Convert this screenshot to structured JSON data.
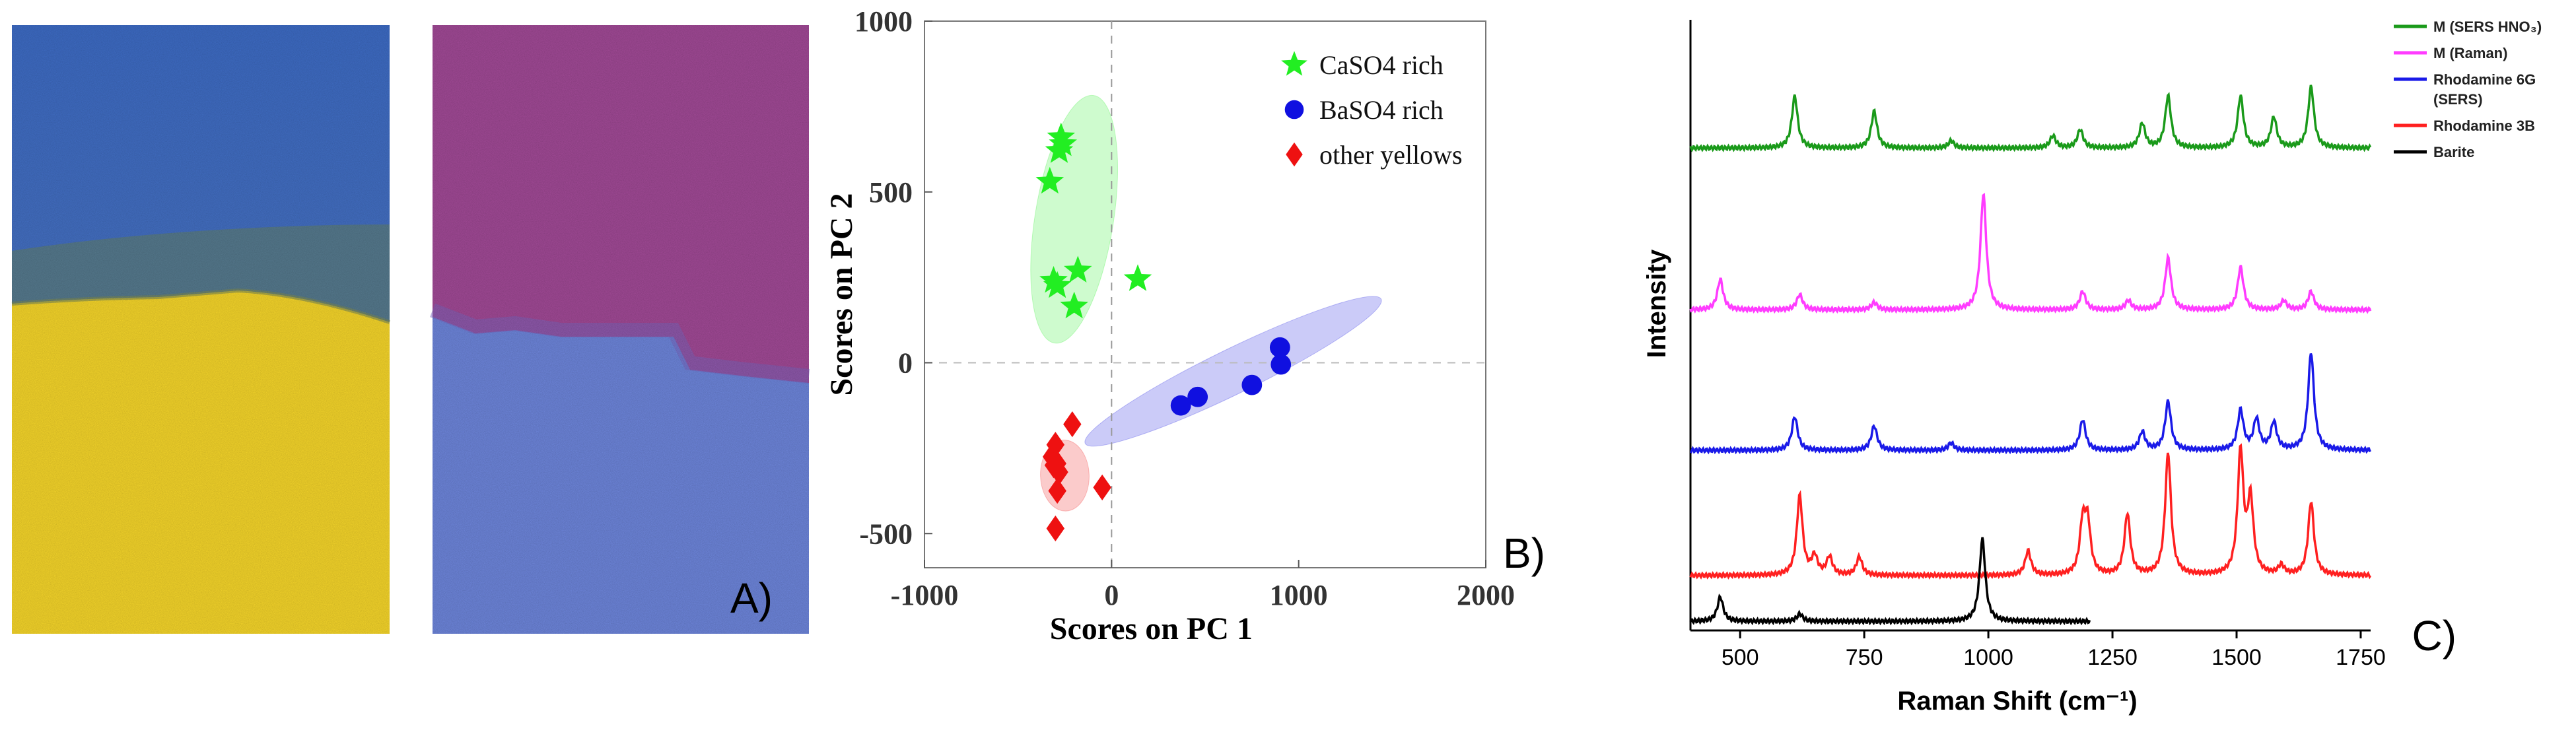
{
  "panels": {
    "a": {
      "label": "A)"
    },
    "b": {
      "label": "B)"
    },
    "c": {
      "label": "C)"
    }
  },
  "colors": {
    "blue_paint": "#3f6fc6",
    "yellow_paint": "#f4d32e",
    "magenta_paint": "#a0489a",
    "light_blue_paint": "#6e87df",
    "casO4": "#22ee22",
    "baso4": "#1010e0",
    "other": "#ee1111",
    "spec_green": "#1a9a1a",
    "spec_magenta": "#ff3cff",
    "spec_blue": "#1a1ae8",
    "spec_red": "#ff2020",
    "spec_black": "#000000"
  },
  "chart_data": [
    {
      "type": "scatter",
      "panel": "B)",
      "xlabel": "Scores on PC 1",
      "ylabel": "Scores on PC 2",
      "xlim": [
        -1000,
        2000
      ],
      "ylim": [
        -600,
        1000
      ],
      "xticks": [
        -1000,
        0,
        1000,
        2000
      ],
      "xtick_labels": [
        "-1000",
        "0",
        "1000",
        "2000"
      ],
      "yticks": [
        -500,
        0,
        500,
        1000
      ],
      "ytick_labels": [
        "-500",
        "0",
        "500",
        "1000"
      ],
      "grid": false,
      "legend_position": "top-right",
      "series": [
        {
          "name": "CaSO4 rich",
          "marker": "star",
          "color": "#22ee22",
          "points": [
            [
              -270,
              660
            ],
            [
              -260,
              640
            ],
            [
              -280,
              620
            ],
            [
              -330,
              530
            ],
            [
              -180,
              270
            ],
            [
              -310,
              240
            ],
            [
              -290,
              225
            ],
            [
              -200,
              165
            ],
            [
              140,
              245
            ]
          ],
          "ellipse": {
            "cx": -200,
            "cy": 420,
            "rx": 670,
            "ry": 210,
            "angle": 81
          }
        },
        {
          "name": "BaSO4 rich",
          "marker": "circle",
          "color": "#1010e0",
          "points": [
            [
              900,
              45
            ],
            [
              905,
              -5
            ],
            [
              750,
              -65
            ],
            [
              460,
              -100
            ],
            [
              370,
              -125
            ]
          ],
          "ellipse": {
            "cx": 650,
            "cy": -25,
            "rx": 880,
            "ry": 120,
            "angle": 26
          }
        },
        {
          "name": "other yellows",
          "marker": "diamond",
          "color": "#ee1111",
          "points": [
            [
              -210,
              -180
            ],
            [
              -300,
              -240
            ],
            [
              -320,
              -275
            ],
            [
              -290,
              -295
            ],
            [
              -310,
              -300
            ],
            [
              -280,
              -320
            ],
            [
              -290,
              -375
            ],
            [
              -50,
              -365
            ],
            [
              -300,
              -485
            ]
          ],
          "ellipse": {
            "cx": -250,
            "cy": -330,
            "rx": 190,
            "ry": 130,
            "angle": 92
          }
        }
      ]
    },
    {
      "type": "line",
      "panel": "C)",
      "xlabel": "Raman Shift (cm⁻¹)",
      "ylabel": "Intensity",
      "xlim": [
        400,
        1770
      ],
      "xticks": [
        500,
        750,
        1000,
        1250,
        1500,
        1750
      ],
      "xtick_labels": [
        "500",
        "750",
        "1000",
        "1250",
        "1500",
        "1750"
      ],
      "legend_position": "top-right",
      "legend": [
        {
          "lines": [
            "M (SERS HNO₃)"
          ],
          "color": "#1a9a1a"
        },
        {
          "lines": [
            "M (Raman)"
          ],
          "color": "#ff3cff"
        },
        {
          "lines": [
            "Rhodamine 6G",
            "(SERS)"
          ],
          "color": "#1a1ae8"
        },
        {
          "lines": [
            "Rhodamine 3B"
          ],
          "color": "#ff2020"
        },
        {
          "lines": [
            "Barite"
          ],
          "color": "#000000"
        }
      ],
      "series": [
        {
          "name": "M (SERS HNO₃)",
          "color": "#1a9a1a",
          "baseline": 0.79,
          "xmax": 1770,
          "peaks": [
            [
              610,
              0.085
            ],
            [
              770,
              0.06
            ],
            [
              925,
              0.012
            ],
            [
              1130,
              0.02
            ],
            [
              1185,
              0.03
            ],
            [
              1310,
              0.04
            ],
            [
              1362,
              0.085
            ],
            [
              1508,
              0.085
            ],
            [
              1575,
              0.05
            ],
            [
              1650,
              0.1
            ]
          ]
        },
        {
          "name": "M (Raman)",
          "color": "#ff3cff",
          "baseline": 0.525,
          "xmax": 1770,
          "peaks": [
            [
              460,
              0.05
            ],
            [
              620,
              0.025
            ],
            [
              770,
              0.012
            ],
            [
              990,
              0.19
            ],
            [
              1190,
              0.03
            ],
            [
              1282,
              0.015
            ],
            [
              1362,
              0.085
            ],
            [
              1508,
              0.07
            ],
            [
              1595,
              0.015
            ],
            [
              1650,
              0.03
            ]
          ]
        },
        {
          "name": "Rhodamine 6G",
          "color": "#1a1ae8",
          "baseline": 0.295,
          "xmax": 1770,
          "peaks": [
            [
              610,
              0.055
            ],
            [
              770,
              0.04
            ],
            [
              925,
              0.012
            ],
            [
              1190,
              0.05
            ],
            [
              1310,
              0.03
            ],
            [
              1362,
              0.08
            ],
            [
              1508,
              0.065
            ],
            [
              1540,
              0.05
            ],
            [
              1575,
              0.045
            ],
            [
              1650,
              0.16
            ]
          ]
        },
        {
          "name": "Rhodamine 3B",
          "color": "#ff2020",
          "baseline": 0.09,
          "xmax": 1770,
          "peaks": [
            [
              620,
              0.13
            ],
            [
              650,
              0.03
            ],
            [
              680,
              0.03
            ],
            [
              740,
              0.03
            ],
            [
              1080,
              0.04
            ],
            [
              1190,
              0.08
            ],
            [
              1200,
              0.08
            ],
            [
              1280,
              0.1
            ],
            [
              1362,
              0.2
            ],
            [
              1508,
              0.2
            ],
            [
              1528,
              0.12
            ],
            [
              1590,
              0.015
            ],
            [
              1650,
              0.12
            ]
          ]
        },
        {
          "name": "Barite",
          "color": "#000000",
          "baseline": 0.015,
          "xmax": 1205,
          "peaks": [
            [
              460,
              0.04
            ],
            [
              620,
              0.012
            ],
            [
              988,
              0.135
            ]
          ]
        }
      ]
    }
  ]
}
